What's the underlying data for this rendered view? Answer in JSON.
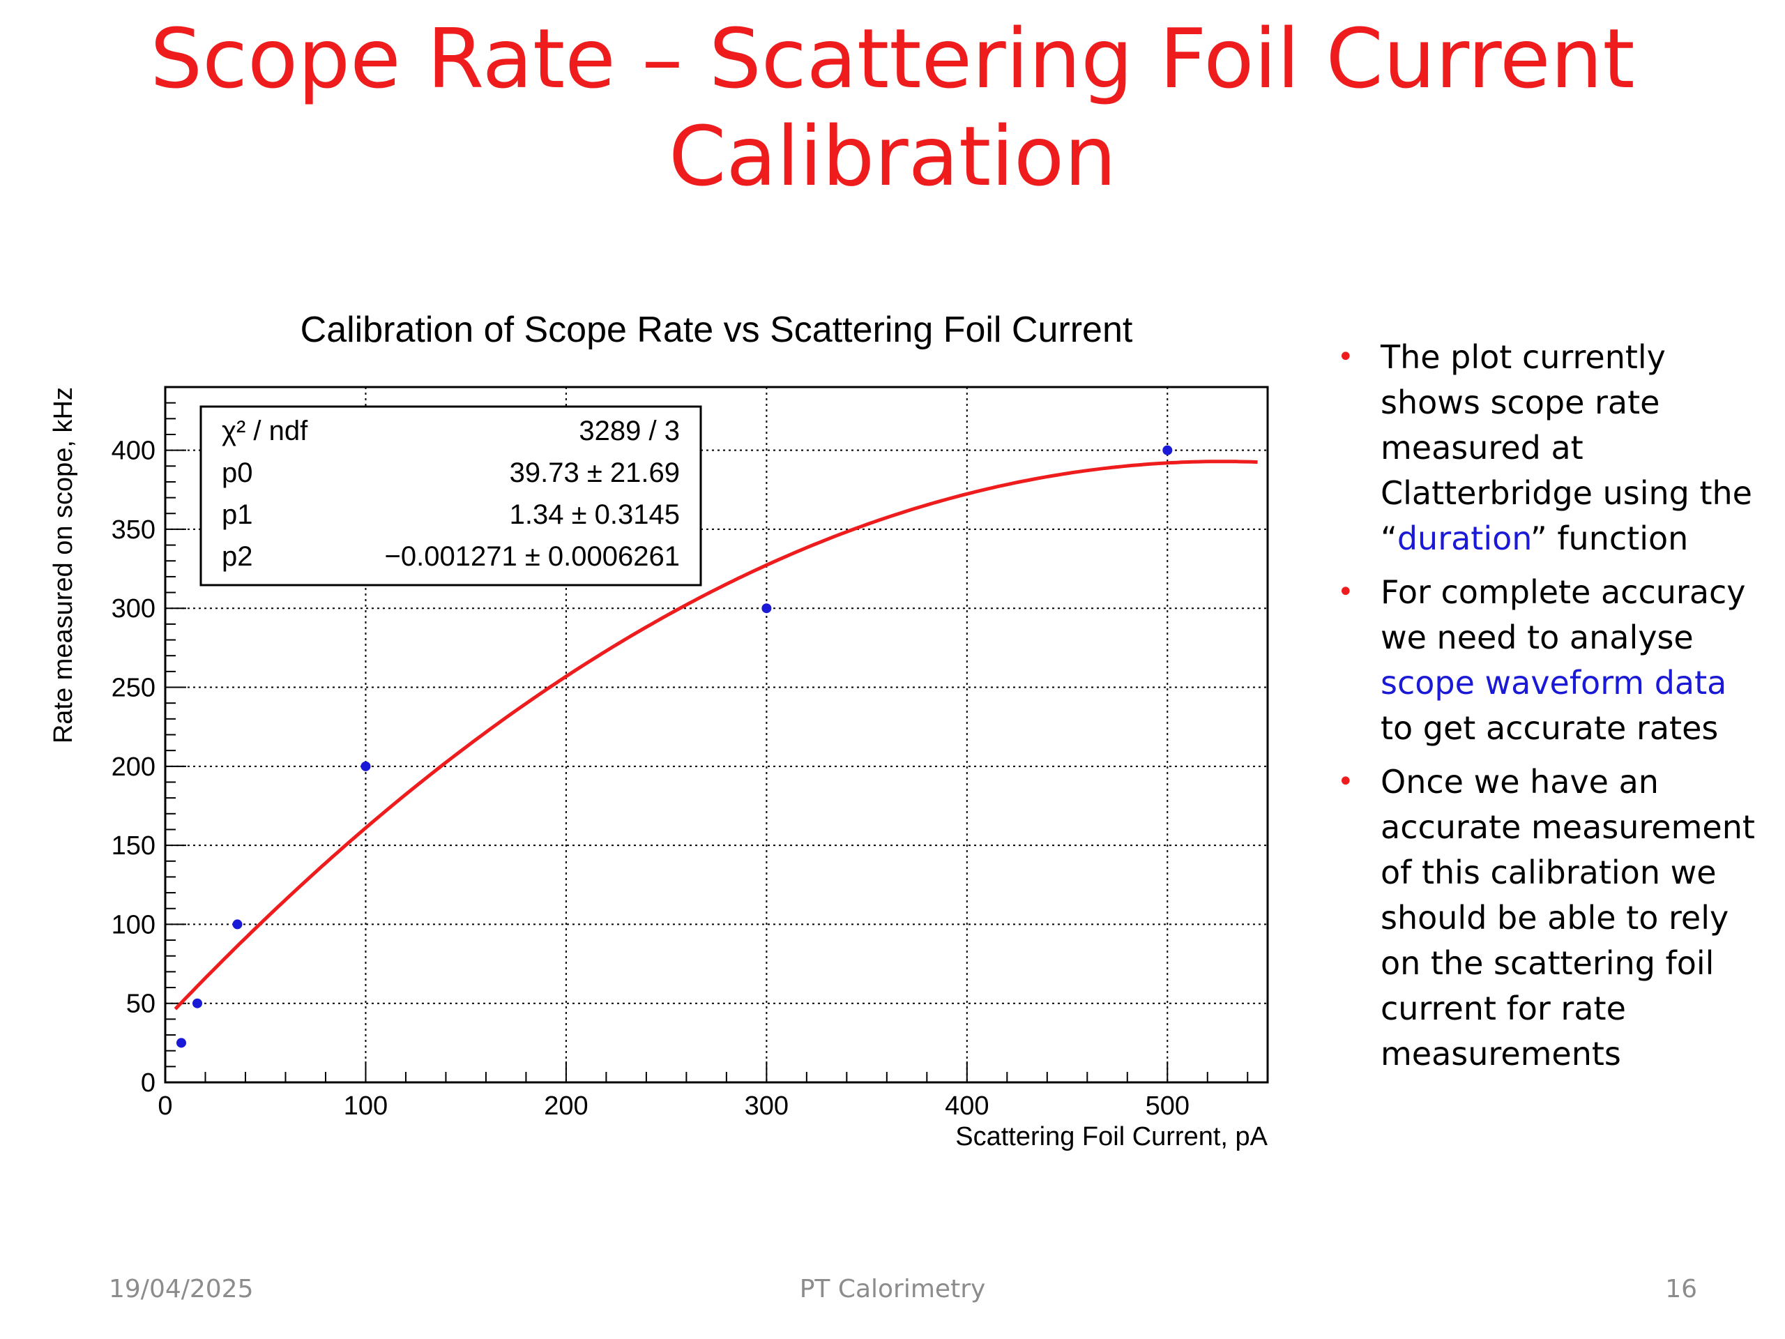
{
  "slide": {
    "title_line1": "Scope Rate – Scattering Foil Current",
    "title_line2": "Calibration",
    "colors": {
      "title": "#ee1c1c",
      "bullet": "#ee1c1c",
      "link": "#1a1ad6",
      "footer": "#8c8c8c"
    }
  },
  "chart_data": {
    "type": "scatter",
    "title": "Calibration of Scope Rate vs Scattering Foil Current",
    "xlabel": "Scattering Foil Current, pA",
    "ylabel": "Rate measured on scope, kHz",
    "xlim": [
      0,
      550
    ],
    "ylim": [
      0,
      440
    ],
    "xticks": [
      0,
      100,
      200,
      300,
      400,
      500
    ],
    "yticks": [
      0,
      50,
      100,
      150,
      200,
      250,
      300,
      350,
      400
    ],
    "grid": true,
    "series": [
      {
        "x": [
          8,
          16,
          36,
          100,
          300,
          500
        ],
        "y": [
          25,
          50,
          100,
          200,
          300,
          400
        ],
        "color": "#1a1ad6"
      }
    ],
    "fit": {
      "function": "pol2",
      "p0": 39.73,
      "p1": 1.34,
      "p2": -0.001271,
      "x_range": [
        5,
        545
      ],
      "color": "#ee1c1c"
    },
    "stats_box": [
      {
        "label": "χ² / ndf",
        "value": "3289 / 3"
      },
      {
        "label": "p0",
        "value": "39.73 ± 21.69"
      },
      {
        "label": "p1",
        "value": "1.34 ± 0.3145"
      },
      {
        "label": "p2",
        "value": "−0.001271 ± 0.0006261"
      }
    ],
    "stats_placement": "top-left"
  },
  "bullets": {
    "b1_a": "The plot currently shows scope rate measured at Clatterbridge using the “",
    "b1_link": "duration",
    "b1_b": "” function",
    "b2_a": "For complete accuracy we need to analyse ",
    "b2_link": "scope waveform data",
    "b2_b": " to get accurate rates",
    "b3": "Once we have an accurate measurement of this calibration we should be able to rely on the scattering foil current for rate measurements"
  },
  "footer": {
    "date": "19/04/2025",
    "center": "PT Calorimetry",
    "page": "16"
  }
}
